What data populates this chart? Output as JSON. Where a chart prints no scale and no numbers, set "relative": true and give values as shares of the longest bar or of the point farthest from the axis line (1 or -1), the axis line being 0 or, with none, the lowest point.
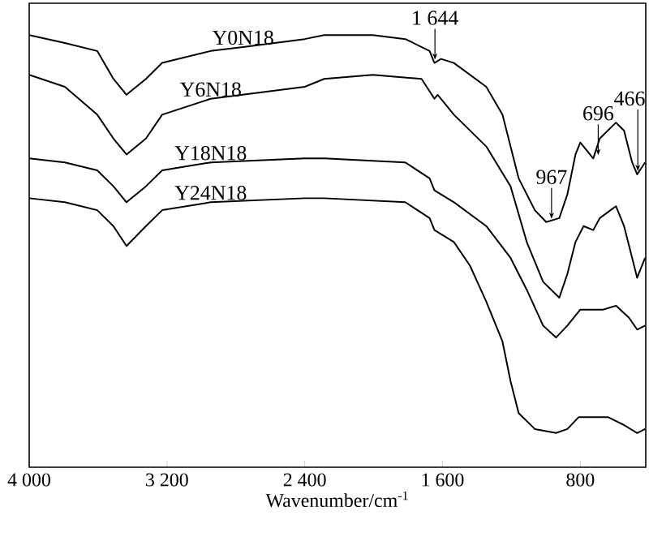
{
  "chart_data": {
    "type": "line",
    "relative": true,
    "xlabel": "Wavenumber/cm$^{-1}$",
    "xlim": [
      4000,
      420
    ],
    "xticks": [
      {
        "value": 4000,
        "label": "4 000"
      },
      {
        "value": 3200,
        "label": "3 200"
      },
      {
        "value": 2400,
        "label": "2 400"
      },
      {
        "value": 1600,
        "label": "1 600"
      },
      800
    ],
    "tick_labels": "x",
    "series": [
      {
        "name": "Y0N18",
        "color": "#000000",
        "x": [
          4000,
          3793,
          3605,
          3511,
          3435,
          3322,
          3228,
          2946,
          2758,
          2400,
          2287,
          2005,
          1816,
          1675,
          1647,
          1609,
          1534,
          1440,
          1346,
          1252,
          1205,
          1158,
          1064,
          998,
          922,
          875,
          828,
          800,
          762,
          725,
          687,
          593,
          546,
          499,
          470,
          424
        ],
        "values": [
          1.0,
          0.98,
          0.96,
          0.89,
          0.85,
          0.89,
          0.93,
          0.96,
          0.97,
          0.99,
          1,
          1,
          0.99,
          0.96,
          0.93,
          0.94,
          0.93,
          0.9,
          0.87,
          0.8,
          0.72,
          0.64,
          0.56,
          0.53,
          0.54,
          0.6,
          0.7,
          0.73,
          0.71,
          0.69,
          0.74,
          0.78,
          0.76,
          0.68,
          0.65,
          0.68
        ]
      },
      {
        "name": "Y6N18",
        "color": "#000000",
        "x": [
          4000,
          3793,
          3605,
          3511,
          3435,
          3322,
          3228,
          2946,
          2400,
          2287,
          2005,
          1722,
          1647,
          1628,
          1534,
          1346,
          1205,
          1111,
          1016,
          922,
          875,
          828,
          781,
          725,
          687,
          593,
          546,
          499,
          470,
          424
        ],
        "values": [
          0.9,
          0.87,
          0.8,
          0.74,
          0.7,
          0.74,
          0.8,
          0.84,
          0.87,
          0.89,
          0.9,
          0.89,
          0.84,
          0.85,
          0.8,
          0.72,
          0.62,
          0.48,
          0.38,
          0.34,
          0.4,
          0.48,
          0.52,
          0.51,
          0.54,
          0.57,
          0.52,
          0.44,
          0.39,
          0.44
        ]
      },
      {
        "name": "Y18N18",
        "color": "#000000",
        "x": [
          4000,
          3793,
          3605,
          3511,
          3435,
          3322,
          3228,
          2946,
          2400,
          2287,
          1816,
          1675,
          1647,
          1534,
          1346,
          1205,
          1111,
          1016,
          941,
          875,
          800,
          725,
          668,
          593,
          518,
          470,
          424
        ],
        "values": [
          0.69,
          0.68,
          0.66,
          0.62,
          0.58,
          0.62,
          0.66,
          0.68,
          0.69,
          0.69,
          0.68,
          0.64,
          0.61,
          0.58,
          0.52,
          0.44,
          0.36,
          0.27,
          0.24,
          0.27,
          0.31,
          0.31,
          0.31,
          0.32,
          0.29,
          0.26,
          0.27
        ]
      },
      {
        "name": "Y24N18",
        "color": "#000000",
        "x": [
          4000,
          3793,
          3605,
          3511,
          3435,
          3322,
          3228,
          2946,
          2400,
          2287,
          1816,
          1675,
          1647,
          1534,
          1440,
          1346,
          1252,
          1205,
          1158,
          1064,
          941,
          875,
          809,
          734,
          640,
          546,
          470,
          424
        ],
        "values": [
          0.59,
          0.58,
          0.56,
          0.52,
          0.47,
          0.52,
          0.56,
          0.58,
          0.59,
          0.59,
          0.58,
          0.54,
          0.51,
          0.48,
          0.42,
          0.33,
          0.23,
          0.13,
          0.05,
          0.01,
          0,
          0.01,
          0.04,
          0.04,
          0.04,
          0.02,
          0,
          0.01
        ]
      }
    ],
    "annotations": [
      {
        "text": "1 644",
        "x": 1644,
        "y": 0.93
      },
      {
        "text": "967",
        "x": 967,
        "y": 0.53
      },
      {
        "text": "696",
        "x": 696,
        "y": 0.69
      },
      {
        "text": "466",
        "x": 466,
        "y": 0.65
      }
    ]
  }
}
